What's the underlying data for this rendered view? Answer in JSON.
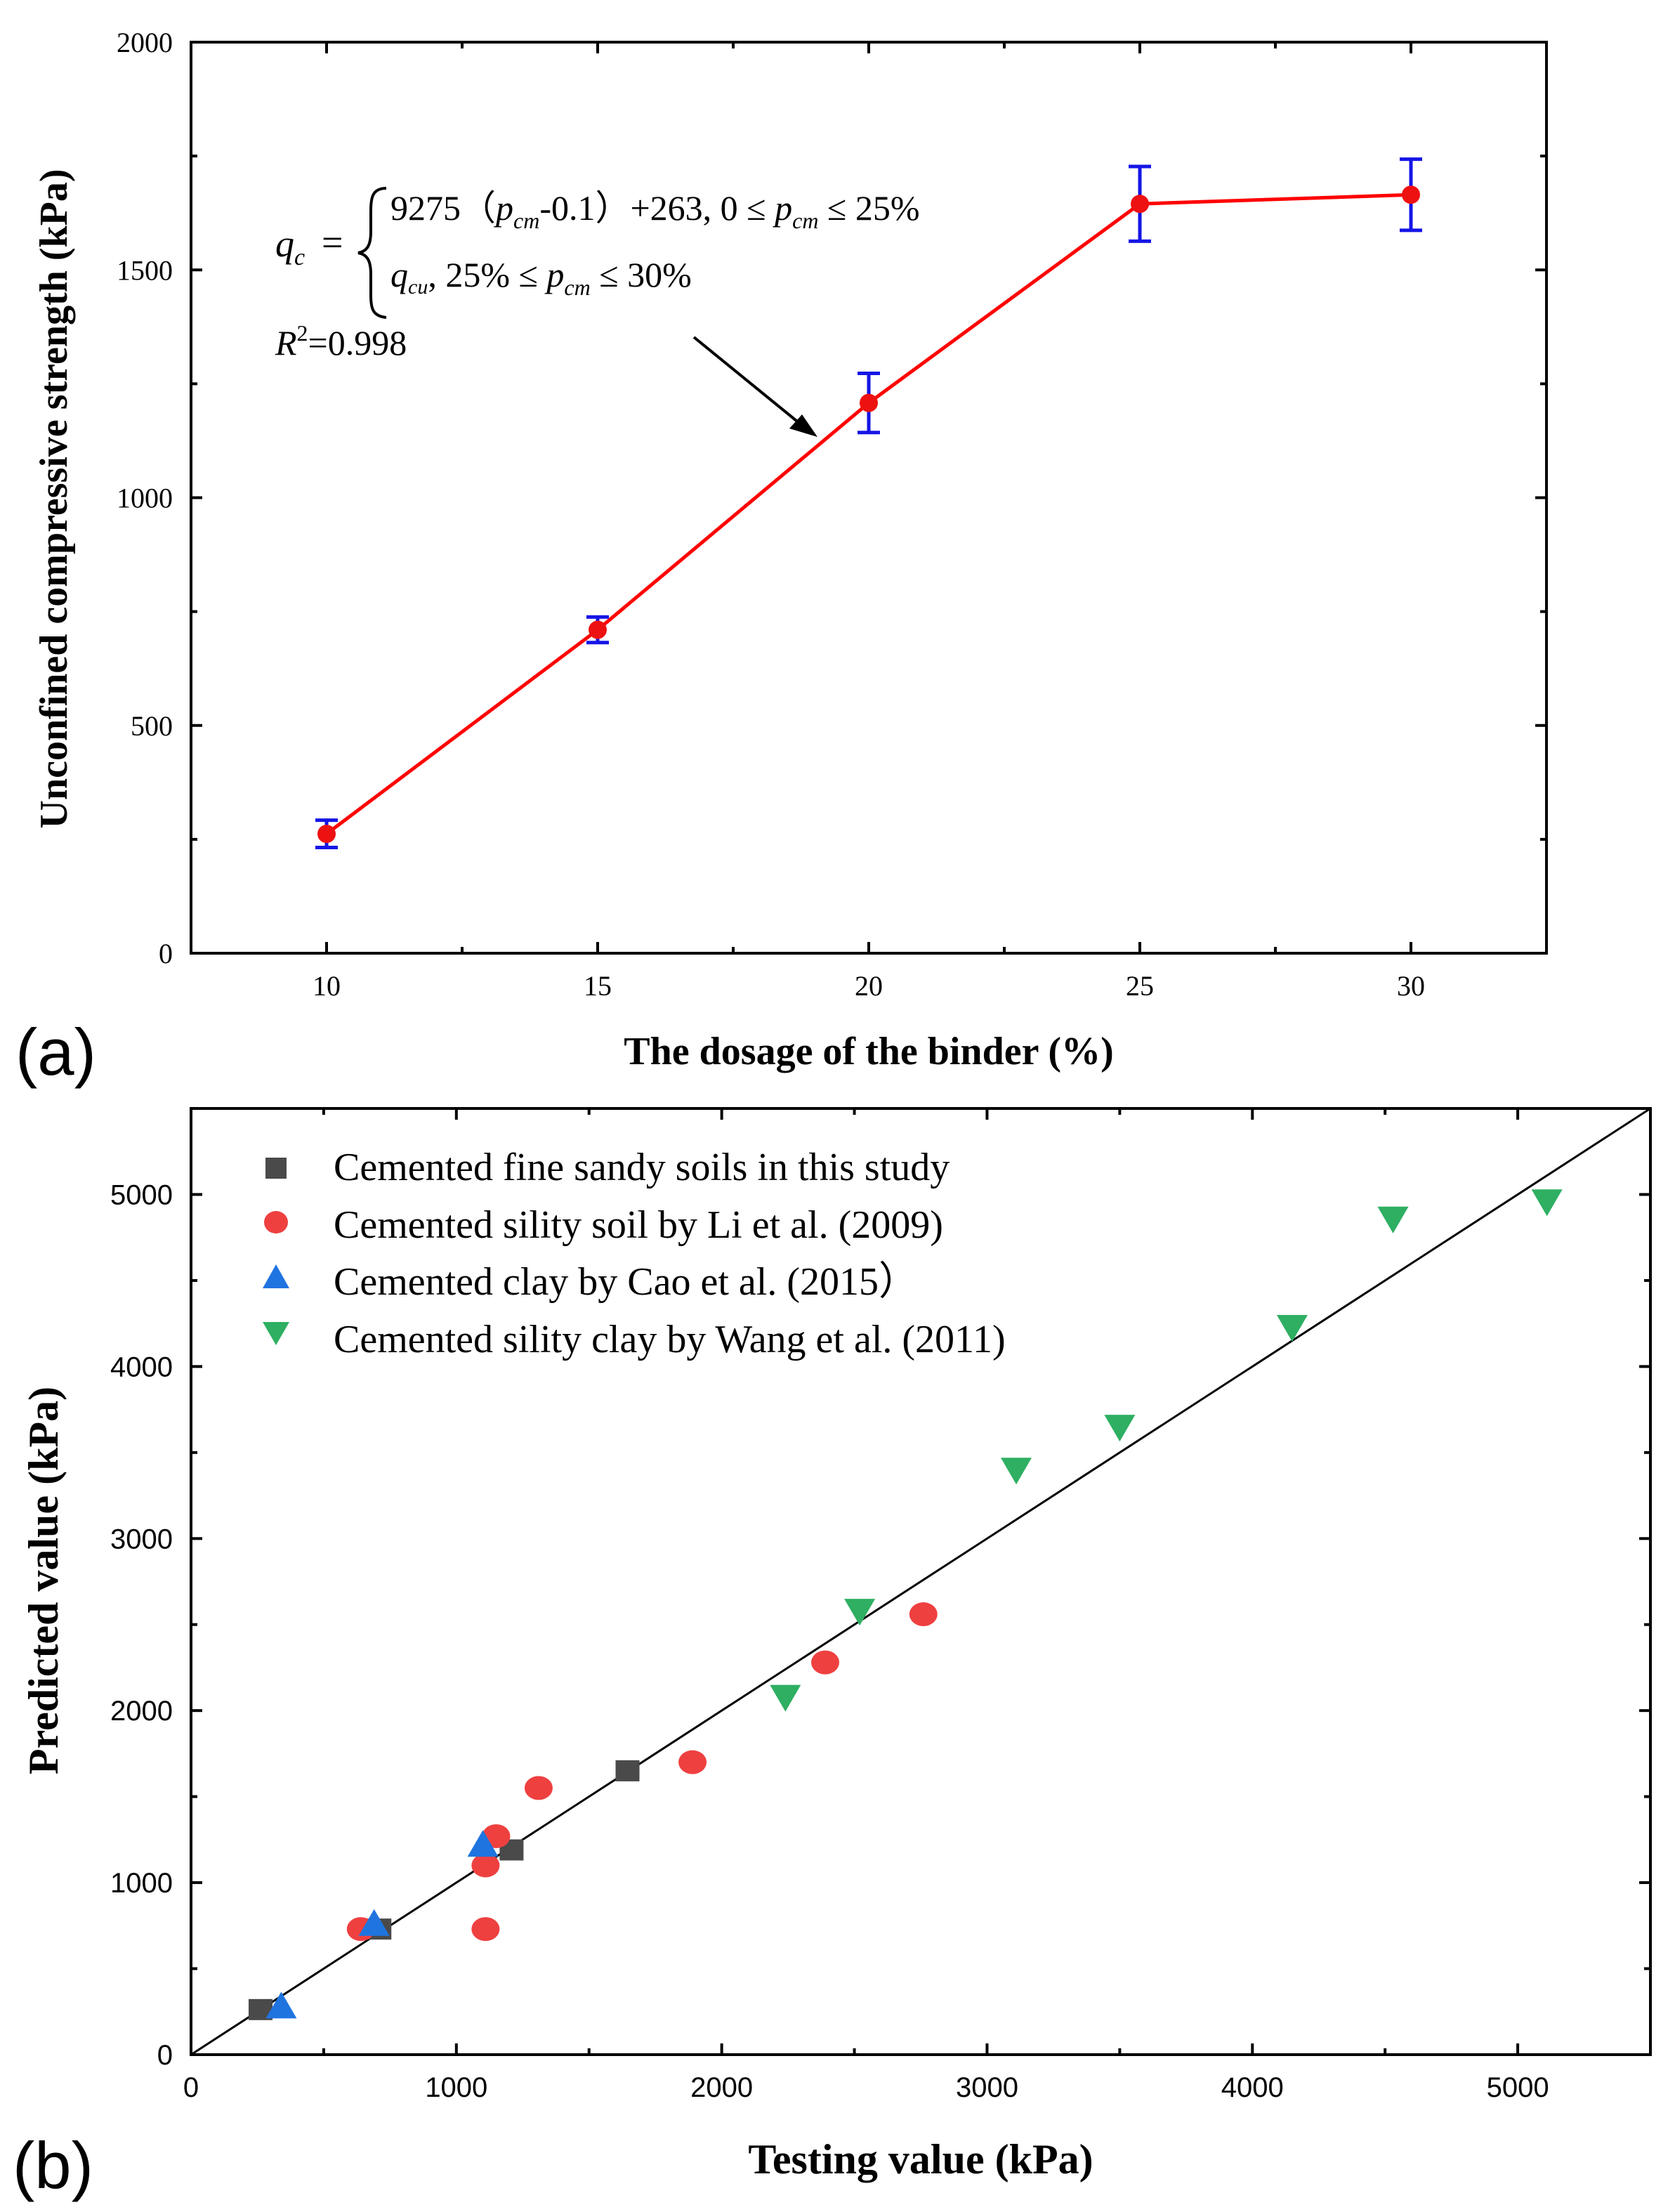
{
  "colors": {
    "line_red": "#ff0000",
    "point_red": "#ee1111",
    "error_blue": "#1515e6",
    "square_gray": "#4a4a4a",
    "circle_red": "#ef4040",
    "triangle_blue": "#1f74e0",
    "triangle_green": "#2eaf62",
    "axis": "#000000"
  },
  "chart_data": [
    {
      "type": "line",
      "panel_label": "(a)",
      "xlabel": "The dosage of the binder (%)",
      "ylabel": "Unconfined compressive strength (kPa)",
      "xlim": [
        7.5,
        32.5
      ],
      "ylim": [
        0,
        2000
      ],
      "xticks": [
        "10",
        "15",
        "20",
        "25",
        "30"
      ],
      "yticks": [
        "0",
        "500",
        "1000",
        "1500",
        "2000"
      ],
      "x": [
        10,
        15,
        20,
        25,
        30
      ],
      "y": [
        262,
        710,
        1208,
        1645,
        1665
      ],
      "error": [
        30,
        28,
        65,
        82,
        78
      ],
      "annotation": {
        "lhs_q": "q",
        "lhs_sub": "c",
        "eq_sign": "=",
        "case1_coef": "9275（",
        "p": "p",
        "p_sub": "cm",
        "case1_mid": "-0.1）+263,  0 ≤ ",
        "le_25": " ≤ 25%",
        "case2_q": "q",
        "case2_sub": "cu",
        "case2_mid": ",  25% ≤ ",
        "le_30": " ≤ 30%",
        "r2_r": "R",
        "r2_sup": "2",
        "r2_val": "=0.998"
      }
    },
    {
      "type": "scatter",
      "panel_label": "(b)",
      "xlabel": "Testing value (kPa)",
      "ylabel": "Predicted value (kPa)",
      "xlim": [
        0,
        5500
      ],
      "ylim": [
        0,
        5500
      ],
      "xticks": [
        "0",
        "1000",
        "2000",
        "3000",
        "4000",
        "5000"
      ],
      "yticks": [
        "0",
        "1000",
        "2000",
        "3000",
        "4000",
        "5000"
      ],
      "reference_line": "y = x",
      "series": [
        {
          "name": "Cemented fine sandy soils in this study",
          "marker": "square",
          "points": [
            [
              262,
              262
            ],
            [
              710,
              730
            ],
            [
              1208,
              1190
            ],
            [
              1645,
              1650
            ]
          ]
        },
        {
          "name": "Cemented sility soil by Li et al. (2009)",
          "marker": "circle",
          "points": [
            [
              640,
              730
            ],
            [
              1110,
              730
            ],
            [
              1110,
              1100
            ],
            [
              1150,
              1270
            ],
            [
              1310,
              1550
            ],
            [
              1890,
              1700
            ],
            [
              2390,
              2280
            ],
            [
              2760,
              2560
            ]
          ]
        },
        {
          "name": "Cemented clay by Cao et al. (2015）",
          "marker": "triangle-up",
          "points": [
            [
              340,
              280
            ],
            [
              690,
              760
            ],
            [
              1100,
              1220
            ]
          ]
        },
        {
          "name": "Cemented sility clay by Wang et al. (2011)",
          "marker": "triangle-down",
          "points": [
            [
              2240,
              2080
            ],
            [
              2520,
              2580
            ],
            [
              3110,
              3400
            ],
            [
              3500,
              3650
            ],
            [
              4150,
              4230
            ],
            [
              4530,
              4860
            ],
            [
              5110,
              4960
            ]
          ]
        }
      ]
    }
  ]
}
